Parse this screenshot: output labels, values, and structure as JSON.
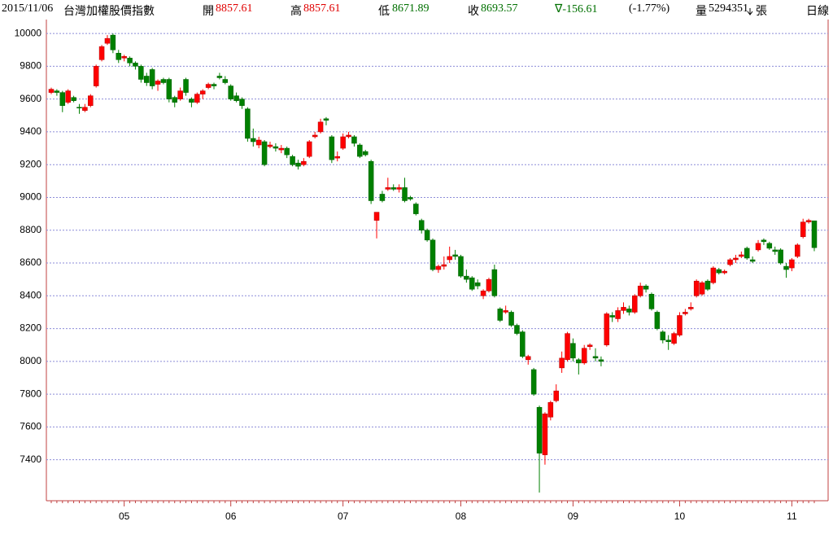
{
  "header": {
    "date": "2015/11/06",
    "title": "台灣加權股價指數",
    "open_label": "開",
    "open": "8857.61",
    "high_label": "高",
    "high": "8857.61",
    "low_label": "低",
    "low": "8671.89",
    "close_label": "收",
    "close": "8693.57",
    "change": "∇-156.61",
    "change_pct": "(-1.77%)",
    "volume_label": "量",
    "volume": "5294351",
    "volume_unit": "張",
    "period": "日線"
  },
  "chart_data": {
    "type": "candlestick",
    "up_color": "#ff0000",
    "down_color": "#008000",
    "grid": true,
    "ylim": [
      7150,
      10085
    ],
    "yticks": [
      7400,
      7600,
      7800,
      8000,
      8200,
      8400,
      8600,
      8800,
      9000,
      9200,
      9400,
      9600,
      9800,
      10000
    ],
    "categories": [
      null,
      null,
      null,
      null,
      null,
      null,
      null,
      null,
      null,
      null,
      null,
      null,
      null,
      "05",
      null,
      null,
      null,
      null,
      null,
      null,
      null,
      null,
      null,
      null,
      null,
      null,
      null,
      null,
      null,
      null,
      null,
      null,
      "06",
      null,
      null,
      null,
      null,
      null,
      null,
      null,
      null,
      null,
      null,
      null,
      null,
      null,
      null,
      null,
      null,
      null,
      null,
      null,
      "07",
      null,
      null,
      null,
      null,
      null,
      null,
      null,
      null,
      null,
      null,
      null,
      null,
      null,
      null,
      null,
      null,
      null,
      null,
      null,
      null,
      "08",
      null,
      null,
      null,
      null,
      null,
      null,
      null,
      null,
      null,
      null,
      null,
      null,
      null,
      null,
      null,
      null,
      null,
      null,
      null,
      "09",
      null,
      null,
      null,
      null,
      null,
      null,
      null,
      null,
      null,
      null,
      null,
      null,
      null,
      null,
      null,
      null,
      null,
      null,
      "10",
      null,
      null,
      null,
      null,
      null,
      null,
      null,
      null,
      null,
      null,
      null,
      null,
      null,
      null,
      null,
      null,
      null,
      null,
      null,
      "11",
      null,
      null,
      null,
      null
    ],
    "candles": [
      {
        "o": 9640,
        "h": 9670,
        "l": 9630,
        "c": 9660
      },
      {
        "o": 9650,
        "h": 9660,
        "l": 9620,
        "c": 9640
      },
      {
        "o": 9640,
        "h": 9650,
        "l": 9520,
        "c": 9560
      },
      {
        "o": 9580,
        "h": 9660,
        "l": 9570,
        "c": 9650
      },
      {
        "o": 9610,
        "h": 9620,
        "l": 9580,
        "c": 9590
      },
      {
        "o": 9550,
        "h": 9570,
        "l": 9510,
        "c": 9545
      },
      {
        "o": 9530,
        "h": 9570,
        "l": 9520,
        "c": 9550
      },
      {
        "o": 9560,
        "h": 9630,
        "l": 9550,
        "c": 9620
      },
      {
        "o": 9680,
        "h": 9810,
        "l": 9670,
        "c": 9800
      },
      {
        "o": 9840,
        "h": 9930,
        "l": 9830,
        "c": 9920
      },
      {
        "o": 9940,
        "h": 9990,
        "l": 9930,
        "c": 9970
      },
      {
        "o": 9990,
        "h": 10000,
        "l": 9880,
        "c": 9900
      },
      {
        "o": 9880,
        "h": 9900,
        "l": 9820,
        "c": 9840
      },
      {
        "o": 9850,
        "h": 9870,
        "l": 9830,
        "c": 9860
      },
      {
        "o": 9850,
        "h": 9860,
        "l": 9800,
        "c": 9820
      },
      {
        "o": 9820,
        "h": 9830,
        "l": 9780,
        "c": 9800
      },
      {
        "o": 9800,
        "h": 9810,
        "l": 9700,
        "c": 9720
      },
      {
        "o": 9740,
        "h": 9760,
        "l": 9680,
        "c": 9700
      },
      {
        "o": 9780,
        "h": 9790,
        "l": 9660,
        "c": 9680
      },
      {
        "o": 9690,
        "h": 9720,
        "l": 9650,
        "c": 9710
      },
      {
        "o": 9720,
        "h": 9730,
        "l": 9690,
        "c": 9700
      },
      {
        "o": 9720,
        "h": 9730,
        "l": 9580,
        "c": 9600
      },
      {
        "o": 9610,
        "h": 9620,
        "l": 9550,
        "c": 9580
      },
      {
        "o": 9600,
        "h": 9670,
        "l": 9590,
        "c": 9650
      },
      {
        "o": 9720,
        "h": 9730,
        "l": 9620,
        "c": 9640
      },
      {
        "o": 9600,
        "h": 9610,
        "l": 9550,
        "c": 9580
      },
      {
        "o": 9580,
        "h": 9640,
        "l": 9570,
        "c": 9630
      },
      {
        "o": 9630,
        "h": 9660,
        "l": 9600,
        "c": 9650
      },
      {
        "o": 9670,
        "h": 9700,
        "l": 9660,
        "c": 9690
      },
      {
        "o": 9690,
        "h": 9700,
        "l": 9660,
        "c": 9680
      },
      {
        "o": 9740,
        "h": 9760,
        "l": 9720,
        "c": 9730
      },
      {
        "o": 9720,
        "h": 9740,
        "l": 9690,
        "c": 9700
      },
      {
        "o": 9680,
        "h": 9690,
        "l": 9590,
        "c": 9600
      },
      {
        "o": 9620,
        "h": 9640,
        "l": 9580,
        "c": 9590
      },
      {
        "o": 9600,
        "h": 9610,
        "l": 9540,
        "c": 9560
      },
      {
        "o": 9540,
        "h": 9550,
        "l": 9340,
        "c": 9360
      },
      {
        "o": 9360,
        "h": 9420,
        "l": 9310,
        "c": 9340
      },
      {
        "o": 9320,
        "h": 9370,
        "l": 9300,
        "c": 9350
      },
      {
        "o": 9340,
        "h": 9350,
        "l": 9190,
        "c": 9200
      },
      {
        "o": 9310,
        "h": 9340,
        "l": 9300,
        "c": 9320
      },
      {
        "o": 9310,
        "h": 9330,
        "l": 9280,
        "c": 9300
      },
      {
        "o": 9290,
        "h": 9320,
        "l": 9270,
        "c": 9300
      },
      {
        "o": 9300,
        "h": 9310,
        "l": 9240,
        "c": 9260
      },
      {
        "o": 9250,
        "h": 9260,
        "l": 9190,
        "c": 9200
      },
      {
        "o": 9210,
        "h": 9230,
        "l": 9170,
        "c": 9190
      },
      {
        "o": 9200,
        "h": 9240,
        "l": 9190,
        "c": 9220
      },
      {
        "o": 9250,
        "h": 9350,
        "l": 9240,
        "c": 9340
      },
      {
        "o": 9370,
        "h": 9400,
        "l": 9360,
        "c": 9380
      },
      {
        "o": 9400,
        "h": 9480,
        "l": 9390,
        "c": 9460
      },
      {
        "o": 9480,
        "h": 9490,
        "l": 9440,
        "c": 9470
      },
      {
        "o": 9370,
        "h": 9380,
        "l": 9210,
        "c": 9230
      },
      {
        "o": 9240,
        "h": 9280,
        "l": 9220,
        "c": 9250
      },
      {
        "o": 9300,
        "h": 9390,
        "l": 9290,
        "c": 9370
      },
      {
        "o": 9370,
        "h": 9400,
        "l": 9360,
        "c": 9380
      },
      {
        "o": 9370,
        "h": 9380,
        "l": 9310,
        "c": 9330
      },
      {
        "o": 9320,
        "h": 9330,
        "l": 9240,
        "c": 9250
      },
      {
        "o": 9280,
        "h": 9290,
        "l": 9250,
        "c": 9260
      },
      {
        "o": 9220,
        "h": 9230,
        "l": 8960,
        "c": 8980
      },
      {
        "o": 8860,
        "h": 8910,
        "l": 8750,
        "c": 8910
      },
      {
        "o": 9020,
        "h": 9040,
        "l": 8970,
        "c": 8980
      },
      {
        "o": 9050,
        "h": 9120,
        "l": 9040,
        "c": 9060
      },
      {
        "o": 9060,
        "h": 9080,
        "l": 9040,
        "c": 9050
      },
      {
        "o": 9050,
        "h": 9080,
        "l": 9030,
        "c": 9060
      },
      {
        "o": 9060,
        "h": 9120,
        "l": 8970,
        "c": 8980
      },
      {
        "o": 9000,
        "h": 9010,
        "l": 8980,
        "c": 8990
      },
      {
        "o": 8960,
        "h": 8970,
        "l": 8890,
        "c": 8900
      },
      {
        "o": 8860,
        "h": 8870,
        "l": 8780,
        "c": 8800
      },
      {
        "o": 8800,
        "h": 8810,
        "l": 8730,
        "c": 8740
      },
      {
        "o": 8740,
        "h": 8750,
        "l": 8550,
        "c": 8560
      },
      {
        "o": 8560,
        "h": 8590,
        "l": 8540,
        "c": 8580
      },
      {
        "o": 8580,
        "h": 8640,
        "l": 8560,
        "c": 8590
      },
      {
        "o": 8620,
        "h": 8700,
        "l": 8600,
        "c": 8640
      },
      {
        "o": 8650,
        "h": 8680,
        "l": 8620,
        "c": 8640
      },
      {
        "o": 8640,
        "h": 8650,
        "l": 8510,
        "c": 8520
      },
      {
        "o": 8520,
        "h": 8560,
        "l": 8480,
        "c": 8500
      },
      {
        "o": 8510,
        "h": 8520,
        "l": 8430,
        "c": 8440
      },
      {
        "o": 8480,
        "h": 8500,
        "l": 8440,
        "c": 8460
      },
      {
        "o": 8400,
        "h": 8440,
        "l": 8380,
        "c": 8430
      },
      {
        "o": 8430,
        "h": 8510,
        "l": 8420,
        "c": 8500
      },
      {
        "o": 8560,
        "h": 8590,
        "l": 8390,
        "c": 8400
      },
      {
        "o": 8320,
        "h": 8330,
        "l": 8240,
        "c": 8250
      },
      {
        "o": 8300,
        "h": 8340,
        "l": 8290,
        "c": 8310
      },
      {
        "o": 8300,
        "h": 8310,
        "l": 8210,
        "c": 8220
      },
      {
        "o": 8220,
        "h": 8230,
        "l": 8160,
        "c": 8170
      },
      {
        "o": 8180,
        "h": 8190,
        "l": 8020,
        "c": 8030
      },
      {
        "o": 8010,
        "h": 8040,
        "l": 7980,
        "c": 8030
      },
      {
        "o": 7950,
        "h": 7960,
        "l": 7790,
        "c": 7800
      },
      {
        "o": 7720,
        "h": 7730,
        "l": 7200,
        "c": 7440
      },
      {
        "o": 7430,
        "h": 7690,
        "l": 7370,
        "c": 7680
      },
      {
        "o": 7660,
        "h": 7760,
        "l": 7640,
        "c": 7750
      },
      {
        "o": 7760,
        "h": 7860,
        "l": 7750,
        "c": 7820
      },
      {
        "o": 7960,
        "h": 8060,
        "l": 7930,
        "c": 8020
      },
      {
        "o": 8010,
        "h": 8180,
        "l": 8000,
        "c": 8170
      },
      {
        "o": 8110,
        "h": 8140,
        "l": 8000,
        "c": 8020
      },
      {
        "o": 8010,
        "h": 8020,
        "l": 7920,
        "c": 7990
      },
      {
        "o": 7990,
        "h": 8100,
        "l": 7980,
        "c": 8080
      },
      {
        "o": 8090,
        "h": 8110,
        "l": 8070,
        "c": 8100
      },
      {
        "o": 8030,
        "h": 8080,
        "l": 8000,
        "c": 8020
      },
      {
        "o": 8010,
        "h": 8030,
        "l": 7970,
        "c": 8000
      },
      {
        "o": 8100,
        "h": 8300,
        "l": 8090,
        "c": 8290
      },
      {
        "o": 8280,
        "h": 8300,
        "l": 8240,
        "c": 8270
      },
      {
        "o": 8260,
        "h": 8330,
        "l": 8240,
        "c": 8310
      },
      {
        "o": 8310,
        "h": 8360,
        "l": 8290,
        "c": 8330
      },
      {
        "o": 8320,
        "h": 8340,
        "l": 8280,
        "c": 8300
      },
      {
        "o": 8300,
        "h": 8410,
        "l": 8290,
        "c": 8400
      },
      {
        "o": 8400,
        "h": 8480,
        "l": 8390,
        "c": 8460
      },
      {
        "o": 8460,
        "h": 8470,
        "l": 8420,
        "c": 8440
      },
      {
        "o": 8410,
        "h": 8420,
        "l": 8310,
        "c": 8320
      },
      {
        "o": 8300,
        "h": 8310,
        "l": 8190,
        "c": 8200
      },
      {
        "o": 8180,
        "h": 8190,
        "l": 8110,
        "c": 8130
      },
      {
        "o": 8130,
        "h": 8160,
        "l": 8070,
        "c": 8120
      },
      {
        "o": 8110,
        "h": 8180,
        "l": 8100,
        "c": 8170
      },
      {
        "o": 8160,
        "h": 8300,
        "l": 8150,
        "c": 8280
      },
      {
        "o": 8290,
        "h": 8320,
        "l": 8280,
        "c": 8300
      },
      {
        "o": 8320,
        "h": 8360,
        "l": 8310,
        "c": 8330
      },
      {
        "o": 8400,
        "h": 8500,
        "l": 8390,
        "c": 8490
      },
      {
        "o": 8410,
        "h": 8490,
        "l": 8400,
        "c": 8480
      },
      {
        "o": 8490,
        "h": 8500,
        "l": 8430,
        "c": 8440
      },
      {
        "o": 8480,
        "h": 8580,
        "l": 8470,
        "c": 8570
      },
      {
        "o": 8560,
        "h": 8570,
        "l": 8530,
        "c": 8540
      },
      {
        "o": 8540,
        "h": 8560,
        "l": 8530,
        "c": 8550
      },
      {
        "o": 8590,
        "h": 8630,
        "l": 8580,
        "c": 8620
      },
      {
        "o": 8620,
        "h": 8650,
        "l": 8600,
        "c": 8630
      },
      {
        "o": 8640,
        "h": 8670,
        "l": 8630,
        "c": 8650
      },
      {
        "o": 8690,
        "h": 8700,
        "l": 8620,
        "c": 8630
      },
      {
        "o": 8620,
        "h": 8640,
        "l": 8600,
        "c": 8610
      },
      {
        "o": 8680,
        "h": 8740,
        "l": 8670,
        "c": 8720
      },
      {
        "o": 8740,
        "h": 8750,
        "l": 8710,
        "c": 8730
      },
      {
        "o": 8720,
        "h": 8730,
        "l": 8680,
        "c": 8690
      },
      {
        "o": 8680,
        "h": 8700,
        "l": 8650,
        "c": 8670
      },
      {
        "o": 8680,
        "h": 8690,
        "l": 8590,
        "c": 8600
      },
      {
        "o": 8580,
        "h": 8600,
        "l": 8510,
        "c": 8560
      },
      {
        "o": 8570,
        "h": 8630,
        "l": 8550,
        "c": 8620
      },
      {
        "o": 8640,
        "h": 8720,
        "l": 8630,
        "c": 8710
      },
      {
        "o": 8760,
        "h": 8870,
        "l": 8750,
        "c": 8850
      },
      {
        "o": 8850,
        "h": 8870,
        "l": 8840,
        "c": 8860
      },
      {
        "o": 8857.61,
        "h": 8857.61,
        "l": 8671.89,
        "c": 8693.57
      }
    ]
  }
}
